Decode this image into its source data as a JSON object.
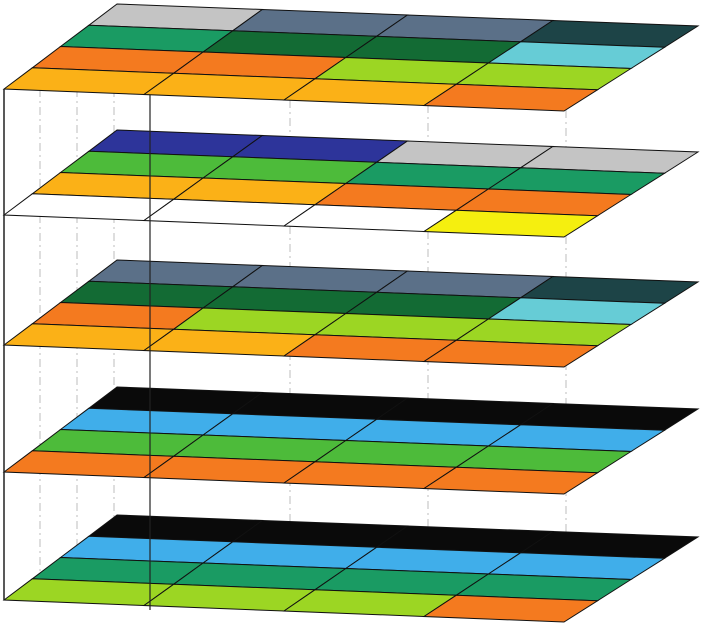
{
  "diagram": {
    "type": "stacked-isometric-grid-layers",
    "layer_count": 5,
    "rows_per_layer": 4,
    "columns_per_layer": 4,
    "colors": {
      "silver": "#c4c4c4",
      "slate": "#5b7088",
      "dark_teal": "#1d4447",
      "green": "#1a9b63",
      "dark_green": "#136b34",
      "sky": "#66ccd6",
      "orange": "#f47a1f",
      "lime": "#9cd623",
      "amber": "#fbb117",
      "navy": "#2d349a",
      "bright_green": "#4dbb3a",
      "white": "#ffffff",
      "yellow": "#f5ef0f",
      "black": "#0a0a0a",
      "blue": "#40aeea"
    },
    "layers": [
      {
        "name": "layer-1-top",
        "cells": [
          [
            "silver",
            "slate",
            "slate",
            "dark_teal"
          ],
          [
            "green",
            "dark_green",
            "dark_green",
            "sky"
          ],
          [
            "orange",
            "orange",
            "lime",
            "lime"
          ],
          [
            "amber",
            "amber",
            "amber",
            "orange"
          ]
        ]
      },
      {
        "name": "layer-2",
        "cells": [
          [
            "navy",
            "navy",
            "silver",
            "silver"
          ],
          [
            "bright_green",
            "bright_green",
            "green",
            "green"
          ],
          [
            "amber",
            "amber",
            "orange",
            "orange"
          ],
          [
            "white",
            "white",
            "white",
            "yellow"
          ]
        ]
      },
      {
        "name": "layer-3",
        "cells": [
          [
            "slate",
            "slate",
            "slate",
            "dark_teal"
          ],
          [
            "dark_green",
            "dark_green",
            "dark_green",
            "sky"
          ],
          [
            "orange",
            "lime",
            "lime",
            "lime"
          ],
          [
            "amber",
            "amber",
            "orange",
            "orange"
          ]
        ]
      },
      {
        "name": "layer-4",
        "cells": [
          [
            "black",
            "black",
            "black",
            "black"
          ],
          [
            "blue",
            "blue",
            "blue",
            "blue"
          ],
          [
            "bright_green",
            "bright_green",
            "bright_green",
            "bright_green"
          ],
          [
            "orange",
            "orange",
            "orange",
            "orange"
          ]
        ]
      },
      {
        "name": "layer-5-bottom",
        "cells": [
          [
            "black",
            "black",
            "black",
            "black"
          ],
          [
            "blue",
            "blue",
            "blue",
            "blue"
          ],
          [
            "green",
            "green",
            "green",
            "green"
          ],
          [
            "lime",
            "lime",
            "lime",
            "orange"
          ]
        ]
      }
    ]
  }
}
